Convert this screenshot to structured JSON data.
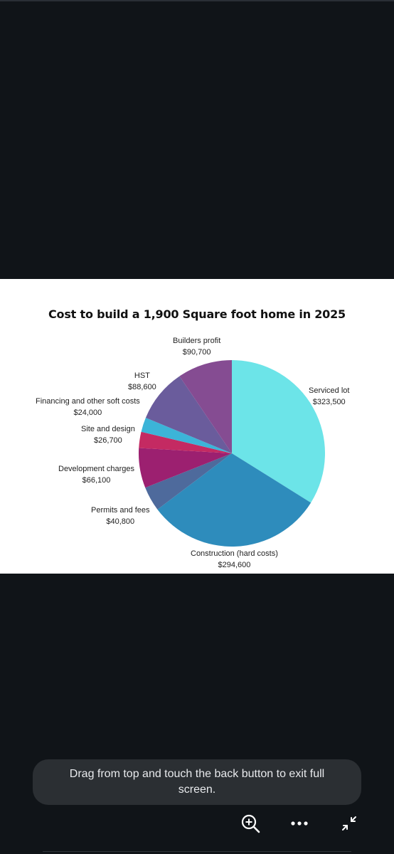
{
  "chart_data": {
    "type": "pie",
    "title": "Cost to build a 1,900 Square foot home in 2025",
    "slices": [
      {
        "label": "Serviced lot",
        "value_text": "$323,500",
        "value": 323500,
        "color": "#6ce4e8"
      },
      {
        "label": "Construction (hard costs)",
        "value_text": "$294,600",
        "value": 294600,
        "color": "#2e8cbc"
      },
      {
        "label": "Permits and fees",
        "value_text": "$40,800",
        "value": 40800,
        "color": "#4e6a9c"
      },
      {
        "label": "Development charges",
        "value_text": "$66,100",
        "value": 66100,
        "color": "#9c2070"
      },
      {
        "label": "Site and design",
        "value_text": "$26,700",
        "value": 26700,
        "color": "#c42a62"
      },
      {
        "label": "Financing and other soft costs",
        "value_text": "$24,000",
        "value": 24000,
        "color": "#3cb4d8"
      },
      {
        "label": "HST",
        "value_text": "$88,600",
        "value": 88600,
        "color": "#6a5c9c"
      },
      {
        "label": "Builders profit",
        "value_text": "$90,700",
        "value": 90700,
        "color": "#854c92"
      }
    ]
  },
  "toast": {
    "message": "Drag from top and touch the back button to exit full screen."
  },
  "controls": {
    "zoom_icon": "zoom-in-icon",
    "more_icon": "more-options-icon",
    "exit_fullscreen_icon": "exit-fullscreen-icon"
  }
}
